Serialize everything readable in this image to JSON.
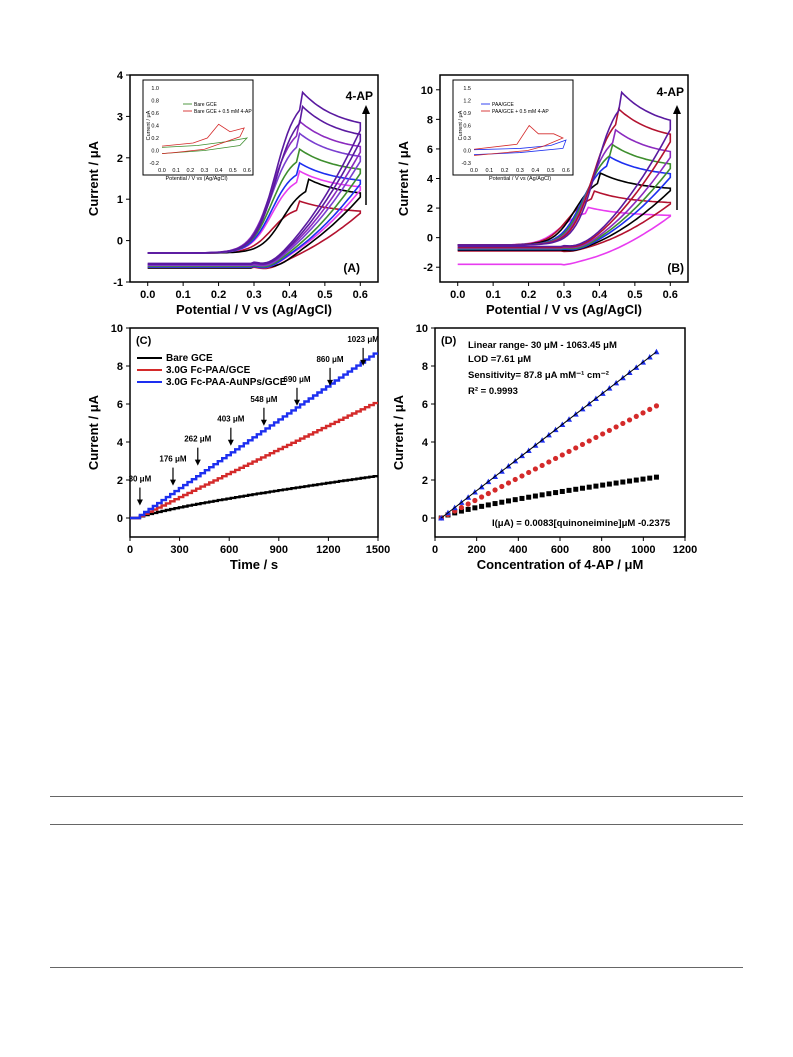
{
  "colors": {
    "black": "#000000",
    "red": "#d42a2a",
    "blue": "#1d2ff0",
    "green": "#3e8e2e",
    "magenta": "#e83cf0",
    "purple": "#5a1aa0",
    "violet": "#8b2bbf",
    "darkred": "#b3122f",
    "lightpurple": "#7a3fd0"
  },
  "chart_data": [
    {
      "panel": "A",
      "type": "line",
      "label": "(A)",
      "xlabel": "Potential / V vs (Ag/AgCl)",
      "ylabel": "Current / μA",
      "xlim": [
        -0.05,
        0.65
      ],
      "ylim": [
        -1,
        4
      ],
      "xticks": [
        "0.0",
        "0.1",
        "0.2",
        "0.3",
        "0.4",
        "0.5",
        "0.6"
      ],
      "yticks": [
        "-1",
        "0",
        "1",
        "2",
        "3",
        "4"
      ],
      "arrow_label": "4-AP",
      "series": [
        {
          "color": "#b3122f",
          "peak": 0.42,
          "ox": 0.98,
          "red": -0.66
        },
        {
          "color": "#000000",
          "peak": 0.45,
          "ox": 1.5,
          "red": -0.66
        },
        {
          "color": "#e83cf0",
          "peak": 0.42,
          "ox": 1.72,
          "red": -0.64
        },
        {
          "color": "#1d2ff0",
          "peak": 0.42,
          "ox": 1.92,
          "red": -0.64
        },
        {
          "color": "#3e8e2e",
          "peak": 0.42,
          "ox": 2.26,
          "red": -0.62
        },
        {
          "color": "#7a3fd0",
          "peak": 0.42,
          "ox": 2.65,
          "red": -0.6
        },
        {
          "color": "#8b2bbf",
          "peak": 0.42,
          "ox": 2.95,
          "red": -0.58
        },
        {
          "color": "#5a1aa0",
          "peak": 0.43,
          "ox": 3.3,
          "red": -0.57
        },
        {
          "color": "#5a1aa0",
          "peak": 0.43,
          "ox": 3.65,
          "red": -0.55
        }
      ],
      "inset": {
        "xlabel": "Potential / V vs (Ag/AgCl)",
        "ylabel": "Current / μA",
        "xticks": [
          "0.0",
          "0.1",
          "0.2",
          "0.3",
          "0.4",
          "0.5",
          "0.6"
        ],
        "yticks": [
          "-0.2",
          "0.0",
          "0.2",
          "0.4",
          "0.6",
          "0.8",
          "1.0"
        ],
        "legend": [
          "Bare GCE",
          "Bare GCE + 0.5 mM 4-AP"
        ],
        "legend_colors": [
          "#3e8e2e",
          "#d42a2a"
        ]
      }
    },
    {
      "panel": "B",
      "type": "line",
      "label": "(B)",
      "xlabel": "Potential / V vs (Ag/AgCl)",
      "ylabel": "Current / μA",
      "xlim": [
        -0.05,
        0.65
      ],
      "ylim": [
        -3,
        11
      ],
      "xticks": [
        "0.0",
        "0.1",
        "0.2",
        "0.3",
        "0.4",
        "0.5",
        "0.6"
      ],
      "yticks": [
        "-2",
        "0",
        "2",
        "4",
        "6",
        "8",
        "10"
      ],
      "arrow_label": "4-AP",
      "series": [
        {
          "color": "#e83cf0",
          "peak": 0.36,
          "ox": 2.1,
          "red": -1.8
        },
        {
          "color": "#b3122f",
          "peak": 0.38,
          "ox": 3.2,
          "red": -0.9
        },
        {
          "color": "#000000",
          "peak": 0.4,
          "ox": 4.4,
          "red": -0.85
        },
        {
          "color": "#1d2ff0",
          "peak": 0.42,
          "ox": 5.6,
          "red": -0.8
        },
        {
          "color": "#3e8e2e",
          "peak": 0.43,
          "ox": 6.4,
          "red": -0.75
        },
        {
          "color": "#8b2bbf",
          "peak": 0.44,
          "ox": 7.4,
          "red": -0.7
        },
        {
          "color": "#b3122f",
          "peak": 0.45,
          "ox": 8.8,
          "red": -0.65
        },
        {
          "color": "#5a1aa0",
          "peak": 0.46,
          "ox": 9.9,
          "red": -0.6
        }
      ],
      "inset": {
        "xlabel": "Potential / V vs (Ag/AgCl)",
        "ylabel": "Current / μA",
        "xticks": [
          "0.0",
          "0.1",
          "0.2",
          "0.3",
          "0.4",
          "0.5",
          "0.6"
        ],
        "yticks": [
          "-0.3",
          "0.0",
          "0.3",
          "0.6",
          "0.9",
          "1.2",
          "1.5"
        ],
        "legend": [
          "PAA/GCE",
          "PAA/GCE + 0.5 mM 4-AP"
        ],
        "legend_colors": [
          "#1d2ff0",
          "#d42a2a"
        ]
      }
    },
    {
      "panel": "C",
      "type": "line",
      "label": "(C)",
      "xlabel": "Time / s",
      "ylabel": "Current / μA",
      "xlim": [
        0,
        1500
      ],
      "ylim": [
        -1,
        10
      ],
      "xticks": [
        "0",
        "300",
        "600",
        "900",
        "1200",
        "1500"
      ],
      "yticks": [
        "0",
        "2",
        "4",
        "6",
        "8",
        "10"
      ],
      "legend": [
        "Bare GCE",
        "3.0G Fc-PAA/GCE",
        "3.0G Fc-PAA-AuNPs/GCE"
      ],
      "series_end": [
        2.2,
        6.05,
        8.65
      ],
      "series_colors": [
        "#000000",
        "#d42a2a",
        "#1d2ff0"
      ],
      "annotations": [
        {
          "t": 60,
          "label": "30 μM"
        },
        {
          "t": 260,
          "label": "176 μM"
        },
        {
          "t": 410,
          "label": "262 μM"
        },
        {
          "t": 610,
          "label": "403 μM"
        },
        {
          "t": 810,
          "label": "548 μM"
        },
        {
          "t": 1010,
          "label": "690 μM"
        },
        {
          "t": 1210,
          "label": "860 μM"
        },
        {
          "t": 1410,
          "label": "1023 μM"
        }
      ]
    },
    {
      "panel": "D",
      "type": "scatter",
      "label": "(D)",
      "xlabel": "Concentration of 4-AP / μM",
      "ylabel": "Current / μA",
      "xlim": [
        0,
        1200
      ],
      "ylim": [
        -1,
        10
      ],
      "xticks": [
        "0",
        "200",
        "400",
        "600",
        "800",
        "1000",
        "1200"
      ],
      "yticks": [
        "0",
        "2",
        "4",
        "6",
        "8",
        "10"
      ],
      "text_lines": [
        "Linear range- 30 μM - 1063.45 μM",
        "LOD =7.61 μM",
        "Sensitivity= 87.8 μA mM⁻¹ cm⁻²",
        "R² = 0.9993"
      ],
      "equation": "I(μA) = 0.0083[quinoneimine]μM -0.2375",
      "series": [
        {
          "name": "",
          "marker": "square",
          "color": "#000000",
          "end": 2.15
        },
        {
          "name": "",
          "marker": "circle",
          "color": "#d42a2a",
          "end": 5.9
        },
        {
          "name": "",
          "marker": "triangle",
          "color": "#1d2ff0",
          "end": 8.75
        }
      ]
    }
  ]
}
